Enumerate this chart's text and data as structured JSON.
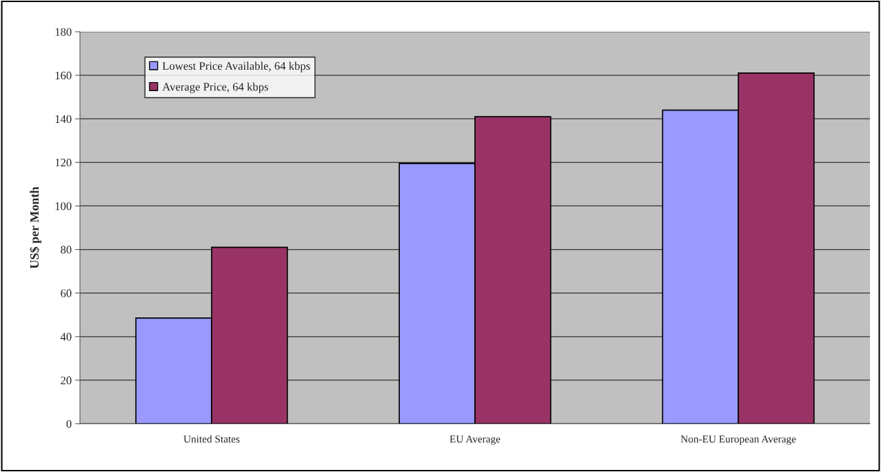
{
  "chart_data": {
    "type": "bar",
    "ylabel": "US$ per Month",
    "categories": [
      "United States",
      "EU Average",
      "Non-EU European Average"
    ],
    "series": [
      {
        "name": "Lowest Price Available, 64 kbps",
        "color": "#9999ff",
        "values": [
          48.5,
          119.5,
          144
        ]
      },
      {
        "name": "Average Price, 64 kbps",
        "color": "#993366",
        "values": [
          81,
          141,
          161
        ]
      }
    ],
    "ylim": [
      0,
      180
    ],
    "yticks": [
      0,
      20,
      40,
      60,
      80,
      100,
      120,
      140,
      160,
      180
    ],
    "grid": "y",
    "legend": "top left"
  }
}
